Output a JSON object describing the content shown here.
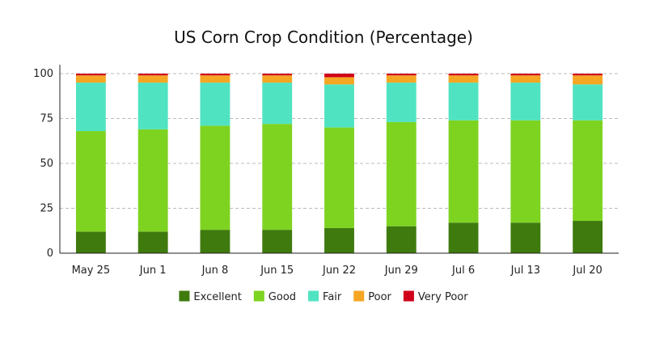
{
  "chart_data": {
    "type": "bar",
    "stacked": true,
    "title": "US Corn Crop Condition (Percentage)",
    "xlabel": "",
    "ylabel": "",
    "ylim": [
      0,
      100
    ],
    "yticks": [
      0,
      25,
      50,
      75,
      100
    ],
    "grid": true,
    "legend_position": "bottom",
    "categories": [
      "May 25",
      "Jun 1",
      "Jun 8",
      "Jun 15",
      "Jun 22",
      "Jun 29",
      "Jul 6",
      "Jul 13",
      "Jul 20"
    ],
    "series": [
      {
        "name": "Excellent",
        "color": "#3f7a0e",
        "values": [
          12,
          12,
          13,
          13,
          14,
          15,
          17,
          17,
          18
        ]
      },
      {
        "name": "Good",
        "color": "#7ed321",
        "values": [
          56,
          57,
          58,
          59,
          56,
          58,
          57,
          57,
          56
        ]
      },
      {
        "name": "Fair",
        "color": "#50e3c2",
        "values": [
          27,
          26,
          24,
          23,
          24,
          22,
          21,
          21,
          20
        ]
      },
      {
        "name": "Poor",
        "color": "#f5a623",
        "values": [
          4,
          4,
          4,
          4,
          4,
          4,
          4,
          4,
          5
        ]
      },
      {
        "name": "Very Poor",
        "color": "#d0021b",
        "values": [
          1,
          1,
          1,
          1,
          2,
          1,
          1,
          1,
          1
        ]
      }
    ]
  }
}
